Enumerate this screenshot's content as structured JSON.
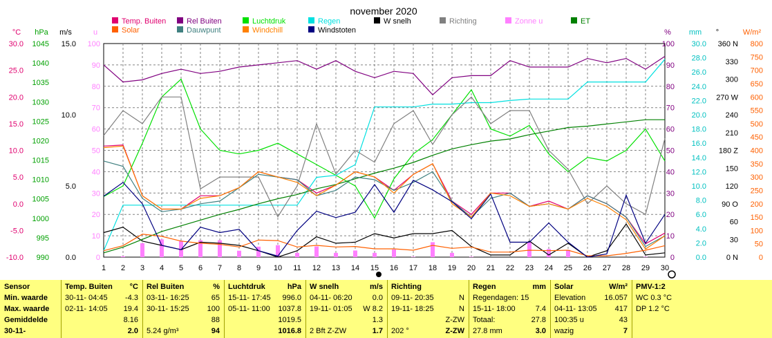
{
  "title": "november 2020",
  "colors": {
    "temp_buiten": "#e0006f",
    "rel_buiten": "#800080",
    "luchtdruk": "#00e000",
    "regen": "#00e0e0",
    "w_snelh": "#000000",
    "richting": "#808080",
    "zonne_u": "#ff80ff",
    "et": "#008000",
    "solar": "#ff6000",
    "dauwpunt": "#408080",
    "windchill": "#ff8000",
    "windstoten": "#000080",
    "stats_bg": "#ffff80"
  },
  "legend": [
    {
      "label": "Temp. Buiten",
      "color": "#e0006f"
    },
    {
      "label": "Rel Buiten",
      "color": "#800080"
    },
    {
      "label": "Luchtdruk",
      "color": "#00e000"
    },
    {
      "label": "Regen",
      "color": "#00e0e0"
    },
    {
      "label": "W snelh",
      "color": "#000000"
    },
    {
      "label": "Richting",
      "color": "#808080"
    },
    {
      "label": "Zonne u",
      "color": "#ff80ff"
    },
    {
      "label": "ET",
      "color": "#008000"
    },
    {
      "label": "Solar",
      "color": "#ff6000"
    },
    {
      "label": "Dauwpunt",
      "color": "#408080"
    },
    {
      "label": "Windchill",
      "color": "#ff8000"
    },
    {
      "label": "Windstoten",
      "color": "#000080"
    }
  ],
  "chart_data": {
    "type": "line",
    "title": "november 2020",
    "x": [
      1,
      2,
      3,
      4,
      5,
      6,
      7,
      8,
      9,
      10,
      11,
      12,
      13,
      14,
      15,
      16,
      17,
      18,
      19,
      20,
      21,
      22,
      23,
      24,
      25,
      26,
      27,
      28,
      29,
      30
    ],
    "xlim": [
      1,
      30
    ],
    "grid": true,
    "legend_position": "top",
    "axes": {
      "temp_c": {
        "unit": "°C",
        "ticks": [
          "30.0",
          "25.0",
          "20.0",
          "15.0",
          "10.0",
          "5.0",
          "0.0",
          "-5.0",
          "-10.0"
        ],
        "range": [
          -10,
          30
        ]
      },
      "pressure_hpa": {
        "unit": "hPa",
        "ticks": [
          "1045",
          "1040",
          "1035",
          "1030",
          "1025",
          "1020",
          "1015",
          "1010",
          "1005",
          "1000",
          "995",
          "990"
        ],
        "range": [
          990,
          1050
        ]
      },
      "wind_ms": {
        "unit": "m/s",
        "ticks": [
          "15.0",
          "10.0",
          "5.0",
          "0.0"
        ],
        "range": [
          0,
          20
        ]
      },
      "sun_u": {
        "unit": "u",
        "ticks": [
          "100",
          "90",
          "80",
          "70",
          "60",
          "50",
          "40",
          "30",
          "20",
          "10",
          "0"
        ],
        "range": [
          0,
          100
        ]
      },
      "humidity_pct": {
        "unit": "%",
        "ticks": [
          "100",
          "90",
          "80",
          "70",
          "60",
          "50",
          "40",
          "30",
          "20",
          "10",
          "0"
        ],
        "range": [
          0,
          100
        ]
      },
      "rain_mm": {
        "unit": "mm",
        "ticks": [
          "30.0",
          "28.0",
          "26.0",
          "24.0",
          "22.0",
          "20.0",
          "18.0",
          "16.0",
          "14.0",
          "12.0",
          "10.0",
          "8.0",
          "6.0",
          "4.0",
          "2.0",
          "0.0"
        ],
        "range": [
          0,
          30
        ]
      },
      "direction_deg": {
        "unit": "°",
        "ticks": [
          "360 N",
          "330",
          "300",
          "270 W",
          "240",
          "210",
          "180 Z",
          "150",
          "120",
          "90 O",
          "60",
          "30",
          "0 N"
        ],
        "range": [
          0,
          360
        ]
      },
      "solar_wm2": {
        "unit": "W/m²",
        "ticks": [
          "800",
          "750",
          "700",
          "650",
          "600",
          "550",
          "500",
          "450",
          "400",
          "350",
          "300",
          "250",
          "200",
          "150",
          "100",
          "50",
          "0"
        ],
        "range": [
          0,
          800
        ]
      }
    },
    "series": [
      {
        "name": "Temp. Buiten",
        "axis": "temp_c",
        "values": [
          10.8,
          11.0,
          1.5,
          -1.0,
          -1.0,
          1.5,
          1.5,
          3.0,
          6.0,
          5.0,
          4.5,
          2.0,
          3.5,
          6.0,
          5.0,
          2.5,
          5.5,
          7.5,
          0.5,
          -2.0,
          2.0,
          2.0,
          -0.5,
          0.5,
          -1.0,
          1.5,
          0.0,
          -2.5,
          -7.5,
          -5.5
        ]
      },
      {
        "name": "Rel Buiten",
        "axis": "humidity_pct",
        "values": [
          90,
          82,
          83,
          86,
          88,
          86,
          87,
          89,
          90,
          91,
          92,
          88,
          92,
          87,
          84,
          87,
          86,
          76,
          84,
          85,
          85,
          92,
          89,
          89,
          89,
          93,
          91,
          93,
          88,
          94
        ]
      },
      {
        "name": "Luchtdruk",
        "axis": "pressure_hpa",
        "values": [
          1007,
          1010,
          1022,
          1035,
          1040,
          1026,
          1020,
          1019,
          1020,
          1022,
          1019,
          1016,
          1013,
          1010,
          1001,
          1012,
          1019,
          1023,
          1030,
          1037,
          1026,
          1024,
          1027,
          1019,
          1014,
          1018,
          1017,
          1020,
          1026,
          1017
        ]
      },
      {
        "name": "Regen",
        "axis": "rain_mm",
        "values": [
          0.9,
          7.3,
          7.3,
          7.3,
          7.3,
          7.3,
          7.3,
          7.3,
          7.3,
          7.3,
          7.3,
          11.2,
          11.5,
          13.0,
          21.1,
          21.1,
          21.1,
          21.5,
          21.5,
          21.7,
          21.7,
          22.0,
          22.2,
          22.2,
          22.2,
          24.6,
          24.6,
          24.6,
          24.6,
          27.8
        ]
      },
      {
        "name": "W snelh",
        "axis": "wind_ms",
        "values": [
          2.3,
          2.8,
          1.5,
          1.1,
          0.7,
          1.4,
          1.3,
          1.1,
          0.6,
          0.0,
          0.6,
          1.9,
          1.3,
          1.4,
          2.2,
          1.8,
          2.2,
          2.2,
          2.5,
          1.0,
          0.2,
          0.2,
          1.5,
          0.2,
          1.3,
          0.0,
          0.6,
          3.1,
          0.2,
          0.4
        ]
      },
      {
        "name": "Richting",
        "axis": "direction_deg",
        "values": [
          205,
          247,
          225,
          270,
          270,
          115,
          135,
          135,
          135,
          68,
          120,
          225,
          140,
          180,
          160,
          225,
          247,
          190,
          240,
          270,
          225,
          247,
          247,
          180,
          148,
          90,
          120,
          90,
          72,
          200
        ]
      },
      {
        "name": "ET",
        "axis": "rain_mm",
        "values": [
          0.6,
          1.4,
          2.5,
          3.6,
          4.4,
          5.2,
          6.0,
          6.7,
          7.5,
          8.2,
          8.8,
          9.6,
          10.2,
          11.0,
          11.8,
          12.5,
          13.3,
          14.3,
          15.2,
          15.8,
          16.3,
          16.6,
          17.2,
          17.7,
          18.2,
          18.4,
          18.7,
          19.0,
          19.3,
          19.3
        ]
      },
      {
        "name": "Solar",
        "axis": "solar_wm2",
        "values": [
          24,
          43,
          86,
          78,
          60,
          52,
          48,
          38,
          64,
          62,
          38,
          44,
          38,
          40,
          31,
          31,
          26,
          44,
          33,
          38,
          19,
          19,
          26,
          24,
          26,
          5,
          5,
          14,
          26,
          43
        ]
      },
      {
        "name": "Dauwpunt",
        "axis": "temp_c",
        "values": [
          8.0,
          7.0,
          1.0,
          -1.5,
          -1.0,
          0.0,
          0.5,
          3.0,
          5.5,
          5.0,
          4.5,
          1.5,
          2.5,
          5.0,
          4.5,
          2.5,
          4.0,
          6.0,
          0.5,
          -2.5,
          1.0,
          2.0,
          -0.5,
          0.0,
          -1.0,
          1.5,
          0.0,
          -2.5,
          -8.0,
          -6.0
        ]
      },
      {
        "name": "Windchill",
        "axis": "temp_c",
        "values": [
          10.5,
          10.8,
          1.5,
          -1.0,
          -1.0,
          1.0,
          1.5,
          3.0,
          6.0,
          5.0,
          4.0,
          1.5,
          3.5,
          6.0,
          5.0,
          2.0,
          5.5,
          7.5,
          0.0,
          -2.5,
          2.0,
          1.5,
          -0.5,
          0.0,
          -1.0,
          1.0,
          -0.5,
          -3.0,
          -8.5,
          -6.0
        ]
      },
      {
        "name": "Windstoten",
        "axis": "wind_ms",
        "values": [
          5.7,
          7.0,
          5.0,
          1.1,
          0.7,
          2.8,
          2.3,
          2.6,
          0.6,
          0.1,
          2.5,
          4.3,
          3.7,
          4.2,
          6.8,
          4.2,
          7.2,
          6.3,
          5.2,
          3.6,
          5.9,
          1.4,
          1.4,
          3.2,
          1.4,
          0.0,
          0.3,
          5.8,
          1.3,
          4.0
        ]
      },
      {
        "name": "Zonne u",
        "axis": "sun_u",
        "type": "bar",
        "values": [
          0,
          0.4,
          6.5,
          8.3,
          7.7,
          7.9,
          7.9,
          3.0,
          4.9,
          5.6,
          2.0,
          5.0,
          2.0,
          3.1,
          2.0,
          3.6,
          0.2,
          7.0,
          2.0,
          0.2,
          0,
          0,
          7.0,
          3.8,
          3.4,
          0,
          0,
          0,
          0.2,
          0
        ]
      }
    ]
  },
  "stats": {
    "sensor": {
      "title": "Sensor",
      "rows": [
        "Min. waarde",
        "Max. waarde",
        "Gemiddelde",
        "30-11-"
      ]
    },
    "temp": {
      "title": "Temp. Buiten",
      "unit": "°C",
      "rows": [
        [
          "30-11- 04:45",
          "-4.3"
        ],
        [
          "02-11- 14:05",
          "19.4"
        ],
        [
          "",
          "8.16"
        ],
        [
          "",
          "2.0"
        ]
      ]
    },
    "rel": {
      "title": "Rel Buiten",
      "unit": "%",
      "rows": [
        [
          "03-11- 16:25",
          "65"
        ],
        [
          "30-11- 15:25",
          "100"
        ],
        [
          "",
          "88"
        ],
        [
          "5.24 g/m³",
          "94"
        ]
      ]
    },
    "lucht": {
      "title": "Luchtdruk",
      "unit": "hPa",
      "rows": [
        [
          "15-11- 17:45",
          "996.0"
        ],
        [
          "05-11- 11:00",
          "1037.8"
        ],
        [
          "",
          "1019.5"
        ],
        [
          "",
          "1016.8"
        ]
      ]
    },
    "wind": {
      "title": "W snelh",
      "unit": "m/s",
      "rows": [
        [
          "04-11- 06:20",
          "0.0"
        ],
        [
          "19-11- 01:05",
          "W 8.2"
        ],
        [
          "",
          "1.3"
        ],
        [
          "2 Bft Z-ZW",
          "1.7"
        ]
      ]
    },
    "richting": {
      "title": "Richting",
      "rows": [
        [
          "09-11- 20:35",
          "N"
        ],
        [
          "19-11- 18:25",
          "N"
        ],
        [
          "",
          "Z-ZW"
        ],
        [
          "202 °",
          "Z-ZW"
        ]
      ]
    },
    "regen": {
      "title": "Regen",
      "unit": "mm",
      "rows": [
        [
          "Regendagen: 15",
          ""
        ],
        [
          "15-11- 18:00",
          "7.4"
        ],
        [
          "Totaal:",
          "27.8"
        ],
        [
          "27.8 mm",
          "3.0"
        ]
      ]
    },
    "solar": {
      "title": "Solar",
      "unit": "W/m²",
      "rows": [
        [
          "Elevation",
          "16.057"
        ],
        [
          "04-11- 13:05",
          "417"
        ],
        [
          "100:35 u",
          "43"
        ],
        [
          "wazig",
          "7"
        ]
      ]
    },
    "pmv": {
      "title": "PMV-1:2",
      "rows": [
        "WC 0.3 °C",
        "DP 1.2 °C"
      ]
    }
  }
}
